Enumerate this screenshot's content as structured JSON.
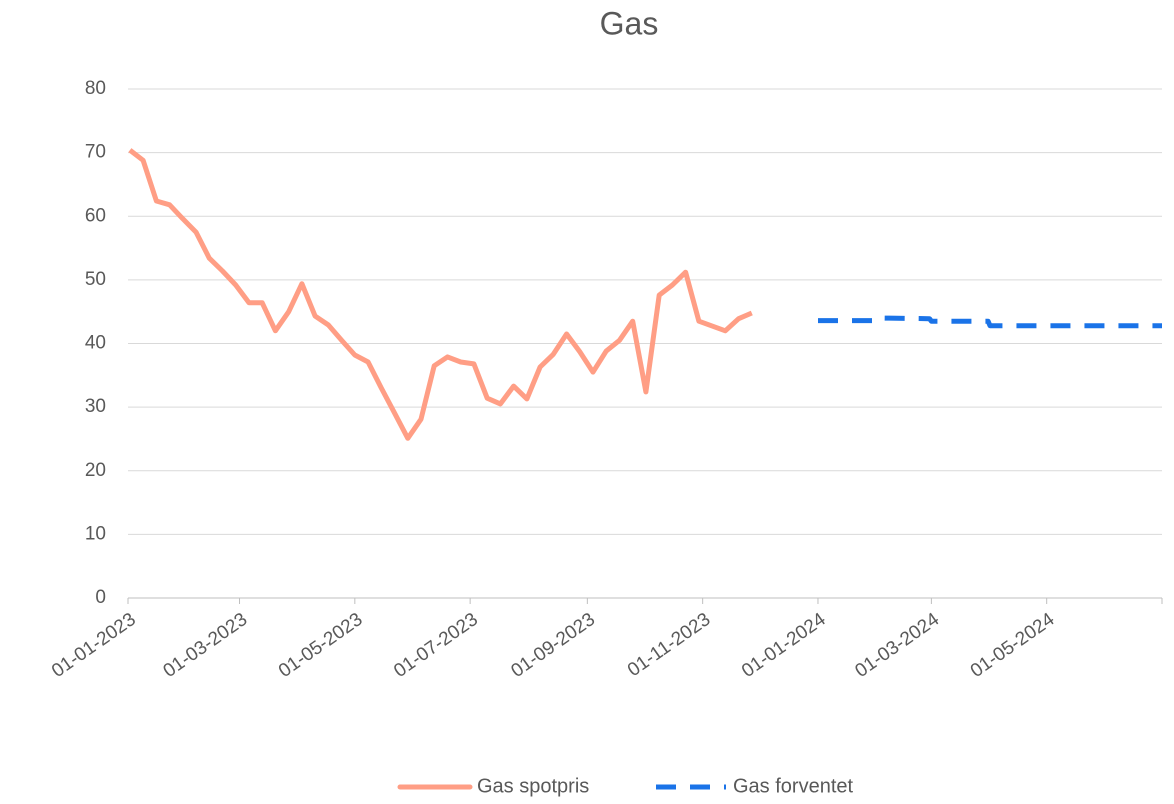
{
  "chart_data": {
    "type": "line",
    "title": "Gas",
    "xlim": [
      "2023-01-01",
      "2024-07-01"
    ],
    "xticks": [
      {
        "value": "2023-01-01",
        "label": "01-01-2023"
      },
      {
        "value": "2023-03-01",
        "label": "01-03-2023"
      },
      {
        "value": "2023-05-01",
        "label": "01-05-2023"
      },
      {
        "value": "2023-07-01",
        "label": "01-07-2023"
      },
      {
        "value": "2023-09-01",
        "label": "01-09-2023"
      },
      {
        "value": "2023-11-01",
        "label": "01-11-2023"
      },
      {
        "value": "2024-01-01",
        "label": "01-01-2024"
      },
      {
        "value": "2024-03-01",
        "label": "01-03-2024"
      },
      {
        "value": "2024-05-01",
        "label": "01-05-2024"
      }
    ],
    "ylim": [
      0,
      80
    ],
    "yticks": [
      0,
      10,
      20,
      30,
      40,
      50,
      60,
      70,
      80
    ],
    "grid": true,
    "legend": "bottom",
    "series": [
      {
        "name": "Gas spotpris",
        "color": "#ff9e85",
        "dash": false,
        "x": [
          "2023-01-02",
          "2023-01-09",
          "2023-01-16",
          "2023-01-23",
          "2023-01-30",
          "2023-02-06",
          "2023-02-13",
          "2023-02-20",
          "2023-02-27",
          "2023-03-06",
          "2023-03-13",
          "2023-03-20",
          "2023-03-27",
          "2023-04-03",
          "2023-04-10",
          "2023-04-17",
          "2023-04-24",
          "2023-05-01",
          "2023-05-08",
          "2023-05-15",
          "2023-05-22",
          "2023-05-29",
          "2023-06-05",
          "2023-06-12",
          "2023-06-19",
          "2023-06-26",
          "2023-07-03",
          "2023-07-10",
          "2023-07-17",
          "2023-07-24",
          "2023-07-31",
          "2023-08-07",
          "2023-08-14",
          "2023-08-21",
          "2023-08-28",
          "2023-09-04",
          "2023-09-11",
          "2023-09-18",
          "2023-09-25",
          "2023-10-02",
          "2023-10-09",
          "2023-10-16",
          "2023-10-23",
          "2023-10-30",
          "2023-11-13",
          "2023-11-20",
          "2023-11-27"
        ],
        "values": [
          70.4,
          68.8,
          62.4,
          61.8,
          59.6,
          57.5,
          53.4,
          51.4,
          49.2,
          46.4,
          46.4,
          42.0,
          45.0,
          49.4,
          44.3,
          42.9,
          40.5,
          38.2,
          37.1,
          33.0,
          29.1,
          25.1,
          28.1,
          36.5,
          37.9,
          37.1,
          36.8,
          31.4,
          30.5,
          33.3,
          31.3,
          36.3,
          38.3,
          41.5,
          38.7,
          35.5,
          38.8,
          40.5,
          43.5,
          32.4,
          47.6,
          49.2,
          51.2,
          43.5,
          42.0,
          43.9,
          44.8
        ]
      },
      {
        "name": "Gas forventet",
        "color": "#1a73e8",
        "dash": true,
        "x": [
          "2024-01-01",
          "2024-01-31",
          "2024-02-01",
          "2024-02-29",
          "2024-03-01",
          "2024-03-31",
          "2024-04-01",
          "2024-07-01"
        ],
        "values": [
          43.6,
          43.6,
          44.0,
          43.9,
          43.5,
          43.5,
          42.8,
          42.8
        ]
      }
    ]
  }
}
